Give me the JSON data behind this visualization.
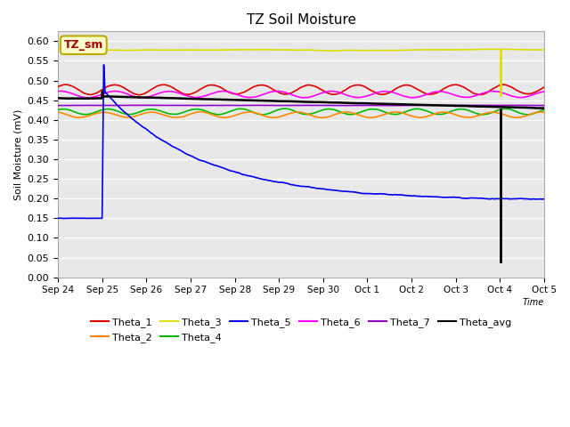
{
  "title": "TZ Soil Moisture",
  "ylabel": "Soil Moisture (mV)",
  "xlabel": "Time",
  "ylim": [
    0.0,
    0.625
  ],
  "yticks": [
    0.0,
    0.05,
    0.1,
    0.15,
    0.2,
    0.25,
    0.3,
    0.35,
    0.4,
    0.45,
    0.5,
    0.55,
    0.6
  ],
  "bg_color": "#e8e8e8",
  "label_box_text": "TZ_sm",
  "label_box_color": "#ffffcc",
  "label_box_edge": "#bbaa00",
  "colors": {
    "Theta_1": "#dd0000",
    "Theta_2": "#ff8800",
    "Theta_3": "#dddd00",
    "Theta_4": "#00bb00",
    "Theta_5": "#0000ee",
    "Theta_6": "#ff00ff",
    "Theta_7": "#9900cc",
    "Theta_avg": "#000000"
  },
  "xtick_labels": [
    "Sep 24",
    "Sep 25",
    "Sep 26",
    "Sep 27",
    "Sep 28",
    "Sep 29",
    "Sep 30",
    "Oct 1",
    "Oct 2",
    "Oct 3",
    "Oct 4",
    "Oct 5"
  ],
  "n_points": 2200,
  "days": 11,
  "sep25_day": 1,
  "oct4_day": 10
}
